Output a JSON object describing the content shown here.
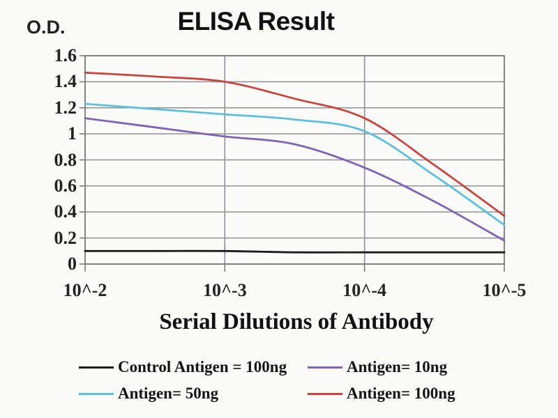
{
  "chart_data": {
    "type": "line",
    "title": "ELISA Result",
    "ylabel": "O.D.",
    "xlabel": "Serial Dilutions of Antibody",
    "grid": true,
    "legend_position": "bottom",
    "x_axis": {
      "tick_labels": [
        "10^-2",
        "10^-3",
        "10^-4",
        "10^-5"
      ],
      "tick_decades": [
        -2,
        -3,
        -4,
        -5
      ]
    },
    "y_axis": {
      "ylim": [
        0,
        1.6
      ],
      "ticks": [
        {
          "label": "1.6",
          "value": 1.6
        },
        {
          "label": "1.4",
          "value": 1.4
        },
        {
          "label": "1.2",
          "value": 1.2
        },
        {
          "label": "1",
          "value": 1.0
        },
        {
          "label": "0.8",
          "value": 0.8
        },
        {
          "label": "0.6",
          "value": 0.6
        },
        {
          "label": "0.4",
          "value": 0.4
        },
        {
          "label": "0.2",
          "value": 0.2
        },
        {
          "label": "0",
          "value": 0
        }
      ]
    },
    "x_decades": [
      -2,
      -2.5,
      -3,
      -3.5,
      -4,
      -4.5,
      -5
    ],
    "series": [
      {
        "name": "Control Antigen = 100ng",
        "color": "#1c1c1c",
        "values": [
          0.1,
          0.1,
          0.1,
          0.09,
          0.09,
          0.09,
          0.09
        ]
      },
      {
        "name": "Antigen= 10ng",
        "color": "#7e62b4",
        "values": [
          1.12,
          1.05,
          0.98,
          0.92,
          0.74,
          0.48,
          0.18
        ]
      },
      {
        "name": "Antigen= 50ng",
        "color": "#5bc0dc",
        "values": [
          1.23,
          1.19,
          1.15,
          1.11,
          1.02,
          0.68,
          0.3
        ]
      },
      {
        "name": "Antigen= 100ng",
        "color": "#c8443d",
        "values": [
          1.47,
          1.44,
          1.4,
          1.27,
          1.12,
          0.76,
          0.37
        ]
      }
    ],
    "colors": {
      "plot_border": "#7a7a7a",
      "gridline": "#8f8f8f",
      "text": "#1a1a1a",
      "background": "#fbfbfa"
    }
  }
}
